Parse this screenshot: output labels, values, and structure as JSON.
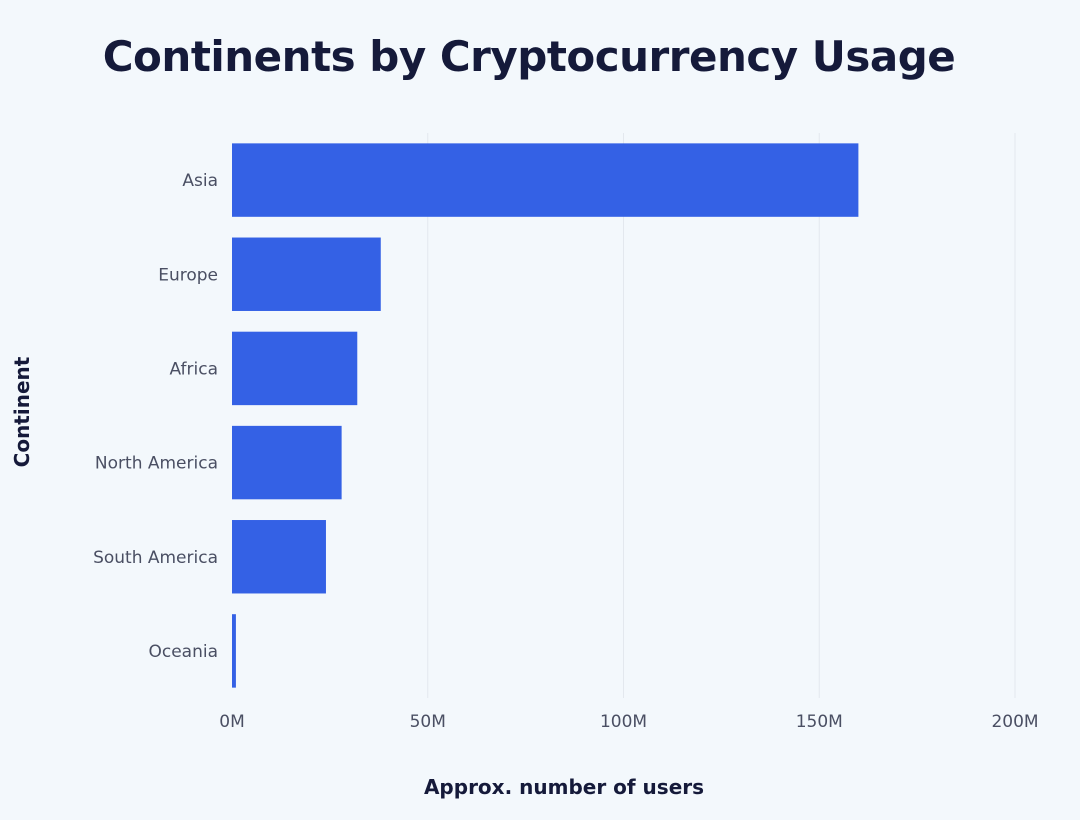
{
  "chart_data": {
    "type": "bar",
    "orientation": "horizontal",
    "title": "Continents by Cryptocurrency Usage",
    "xlabel": "Approx. number of users",
    "ylabel": "Continent",
    "categories": [
      "Asia",
      "Europe",
      "Africa",
      "North America",
      "South America",
      "Oceania"
    ],
    "values": [
      160000000,
      38000000,
      32000000,
      28000000,
      24000000,
      1000000
    ],
    "xlim": [
      0,
      200000000
    ],
    "xticks": [
      {
        "value": 0,
        "label": "0M"
      },
      {
        "value": 50000000,
        "label": "50M"
      },
      {
        "value": 100000000,
        "label": "100M"
      },
      {
        "value": 150000000,
        "label": "150M"
      },
      {
        "value": 200000000,
        "label": "200M"
      }
    ],
    "grid": "vertical",
    "bar_color": "#3461e5",
    "grid_color": "#e3e8ee"
  }
}
